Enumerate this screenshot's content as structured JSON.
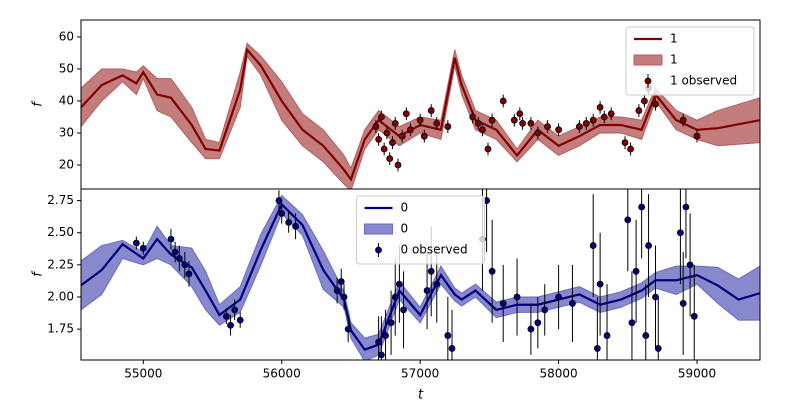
{
  "chart_data": [
    {
      "type": "line",
      "ylabel": "f",
      "xlim": [
        54550,
        59455
      ],
      "ylim": [
        12.5,
        65.3
      ],
      "yticks": [
        20,
        30,
        40,
        50,
        60
      ],
      "legend": "upper right",
      "series": [
        {
          "type": "line",
          "name": "1",
          "color": "#800000",
          "x": [
            54550,
            54700,
            54850,
            54950,
            55000,
            55100,
            55200,
            55350,
            55450,
            55550,
            55700,
            55750,
            55850,
            56000,
            56150,
            56300,
            56450,
            56500,
            56600,
            56700,
            56850,
            57000,
            57150,
            57250,
            57300,
            57400,
            57550,
            57700,
            57850,
            58000,
            58150,
            58300,
            58450,
            58600,
            58700,
            58850,
            59000,
            59150,
            59455
          ],
          "values": [
            38,
            45,
            48,
            45.5,
            49,
            42,
            41,
            32.5,
            25,
            24.5,
            43.5,
            56,
            51,
            40,
            31,
            26,
            18.5,
            15.5,
            28,
            34,
            29,
            32.5,
            31,
            53.5,
            45,
            34,
            31,
            23,
            31,
            26,
            29,
            32.5,
            32.5,
            31,
            42,
            34,
            31,
            31.5,
            34
          ]
        },
        {
          "type": "band",
          "name": "1",
          "color": "#b55c5c",
          "x": [
            54550,
            54700,
            54850,
            54950,
            55000,
            55100,
            55200,
            55350,
            55450,
            55550,
            55700,
            55750,
            55850,
            56000,
            56150,
            56300,
            56450,
            56500,
            56600,
            56700,
            56850,
            57000,
            57150,
            57250,
            57300,
            57400,
            57550,
            57700,
            57850,
            58000,
            58150,
            58300,
            58450,
            58600,
            58700,
            58850,
            59000,
            59150,
            59455
          ],
          "lower": [
            32,
            40,
            46,
            42,
            47,
            37,
            35,
            27,
            22,
            22,
            38,
            54,
            48,
            34,
            26,
            21,
            14,
            12,
            25,
            31,
            26,
            30,
            28,
            51,
            42,
            31,
            28,
            21,
            28,
            23,
            26,
            30,
            30,
            28,
            40,
            31,
            28,
            26,
            27
          ],
          "upper": [
            44,
            50,
            50,
            49,
            51,
            47,
            47,
            38,
            28,
            27,
            49,
            58,
            54,
            46,
            36,
            31,
            23,
            19,
            31,
            37,
            32,
            35,
            34,
            56,
            48,
            37,
            34,
            25,
            34,
            29,
            32,
            35,
            35,
            34,
            44,
            37,
            34,
            37,
            41
          ]
        },
        {
          "type": "errorbar",
          "name": "1 observed",
          "color": "#800000",
          "x": [
            56680,
            56700,
            56720,
            56740,
            56760,
            56780,
            56800,
            56820,
            56840,
            56870,
            56900,
            56930,
            57000,
            57030,
            57080,
            57120,
            57200,
            57380,
            57420,
            57450,
            57490,
            57520,
            57600,
            57680,
            57720,
            57740,
            57800,
            57850,
            57920,
            58000,
            58150,
            58200,
            58250,
            58300,
            58330,
            58380,
            58480,
            58520,
            58580,
            58620,
            58650,
            58700,
            58900,
            59000
          ],
          "values": [
            32,
            28,
            35,
            25,
            30,
            22,
            27,
            33,
            20,
            29,
            36,
            31,
            34,
            29,
            37,
            33,
            32,
            35,
            33,
            31,
            25,
            34,
            40,
            34,
            36,
            33,
            33,
            30,
            32,
            31,
            32,
            33,
            34,
            38,
            35,
            36,
            27,
            25,
            37,
            40,
            44,
            39,
            34,
            29
          ],
          "errors": [
            2,
            2,
            2,
            2,
            2,
            2,
            2,
            2,
            2,
            2,
            2,
            2,
            2,
            2,
            2,
            2,
            2,
            2,
            2,
            2,
            2,
            2,
            2,
            2,
            2,
            2,
            2,
            2,
            2,
            2,
            2,
            2,
            2,
            2,
            2,
            2,
            2,
            2,
            2,
            2,
            2,
            2,
            2,
            2
          ]
        }
      ]
    },
    {
      "type": "line",
      "ylabel": "f",
      "xlabel": "t",
      "xlim": [
        54550,
        59455
      ],
      "ylim": [
        1.51,
        2.84
      ],
      "xticks": [
        55000,
        56000,
        57000,
        58000,
        59000
      ],
      "yticks": [
        1.75,
        {
          "value": 2,
          "label": "2.00"
        },
        2.25,
        {
          "value": 2.5,
          "label": "2.50"
        },
        2.75
      ],
      "legend": "upper center",
      "series": [
        {
          "type": "line",
          "name": "0",
          "color": "#00007f",
          "x": [
            54550,
            54700,
            54850,
            55000,
            55100,
            55200,
            55350,
            55450,
            55550,
            55700,
            55850,
            56000,
            56150,
            56300,
            56450,
            56500,
            56600,
            56700,
            56850,
            57000,
            57150,
            57250,
            57300,
            57400,
            57550,
            57700,
            57850,
            58000,
            58150,
            58300,
            58450,
            58600,
            58700,
            58850,
            59000,
            59150,
            59300,
            59455
          ],
          "values": [
            2.09,
            2.21,
            2.41,
            2.3,
            2.45,
            2.33,
            2.23,
            2.05,
            1.86,
            1.98,
            2.37,
            2.72,
            2.56,
            2.21,
            1.98,
            1.74,
            1.59,
            1.63,
            2.05,
            1.86,
            2.17,
            2.02,
            1.98,
            2.05,
            1.9,
            1.94,
            1.94,
            1.98,
            2.02,
            1.94,
            1.98,
            2.05,
            2.13,
            2.13,
            2.17,
            2.09,
            1.98,
            2.03
          ]
        },
        {
          "type": "band",
          "name": "0",
          "color": "#6a6ac0",
          "x": [
            54550,
            54700,
            54850,
            55000,
            55100,
            55200,
            55350,
            55450,
            55550,
            55700,
            55850,
            56000,
            56150,
            56300,
            56450,
            56500,
            56600,
            56700,
            56850,
            57000,
            57150,
            57250,
            57300,
            57400,
            57550,
            57700,
            57850,
            58000,
            58150,
            58300,
            58450,
            58600,
            58700,
            58850,
            59000,
            59150,
            59300,
            59455
          ],
          "lower": [
            1.9,
            2.02,
            2.3,
            2.25,
            2.3,
            2.25,
            2.08,
            1.9,
            1.78,
            1.88,
            2.25,
            2.65,
            2.48,
            2.06,
            1.92,
            1.68,
            1.5,
            1.55,
            1.98,
            1.8,
            2.1,
            1.97,
            1.93,
            2.0,
            1.84,
            1.88,
            1.88,
            1.92,
            1.96,
            1.88,
            1.92,
            1.99,
            2.07,
            2.02,
            2.1,
            1.95,
            1.82,
            1.82
          ],
          "upper": [
            2.28,
            2.4,
            2.44,
            2.35,
            2.55,
            2.4,
            2.38,
            2.2,
            1.94,
            2.08,
            2.49,
            2.79,
            2.64,
            2.36,
            2.04,
            1.8,
            1.68,
            1.71,
            2.12,
            1.92,
            2.24,
            2.07,
            2.03,
            2.1,
            1.96,
            2.0,
            2.0,
            2.04,
            2.08,
            2.0,
            2.04,
            2.11,
            2.19,
            2.24,
            2.24,
            2.23,
            2.14,
            2.24
          ]
        },
        {
          "type": "errorbar",
          "name": "0 observed",
          "color": "#00007f",
          "x": [
            54950,
            55000,
            55200,
            55230,
            55260,
            55300,
            55330,
            55600,
            55630,
            55660,
            55700,
            55980,
            56000,
            56050,
            56100,
            56400,
            56430,
            56450,
            56480,
            56700,
            56720,
            56750,
            56790,
            56820,
            56850,
            56880,
            57050,
            57080,
            57120,
            57200,
            57230,
            57450,
            57480,
            57520,
            57600,
            57700,
            57800,
            57850,
            57900,
            58000,
            58100,
            58250,
            58280,
            58300,
            58350,
            58500,
            58530,
            58560,
            58600,
            58630,
            58650,
            58700,
            58720,
            58880,
            58900,
            58920,
            58950,
            58980
          ],
          "values": [
            2.42,
            2.38,
            2.45,
            2.35,
            2.3,
            2.25,
            2.18,
            1.85,
            1.78,
            1.9,
            1.82,
            2.75,
            2.65,
            2.58,
            2.55,
            2.05,
            2.12,
            2.0,
            1.75,
            1.65,
            1.55,
            1.7,
            1.8,
            2.0,
            2.1,
            1.9,
            2.05,
            2.2,
            2.1,
            1.7,
            1.6,
            2.45,
            2.75,
            2.2,
            1.95,
            2.0,
            1.75,
            1.8,
            1.9,
            2.0,
            1.95,
            2.4,
            1.6,
            2.1,
            1.7,
            2.6,
            1.8,
            2.2,
            2.7,
            1.7,
            2.4,
            2.0,
            1.6,
            2.5,
            1.95,
            2.7,
            2.25,
            1.85
          ],
          "errors": [
            0.05,
            0.05,
            0.08,
            0.08,
            0.1,
            0.1,
            0.1,
            0.06,
            0.08,
            0.08,
            0.06,
            0.08,
            0.08,
            0.08,
            0.1,
            0.1,
            0.1,
            0.1,
            0.1,
            0.2,
            0.3,
            0.2,
            0.25,
            0.3,
            0.3,
            0.3,
            0.3,
            0.35,
            0.3,
            0.3,
            0.3,
            0.4,
            0.4,
            0.4,
            0.3,
            0.3,
            0.2,
            0.2,
            0.2,
            0.25,
            0.3,
            0.4,
            0.4,
            0.4,
            0.4,
            0.4,
            0.4,
            0.4,
            0.4,
            0.4,
            0.4,
            0.4,
            0.4,
            0.4,
            0.4,
            0.4,
            0.4,
            0.4
          ]
        }
      ]
    }
  ]
}
